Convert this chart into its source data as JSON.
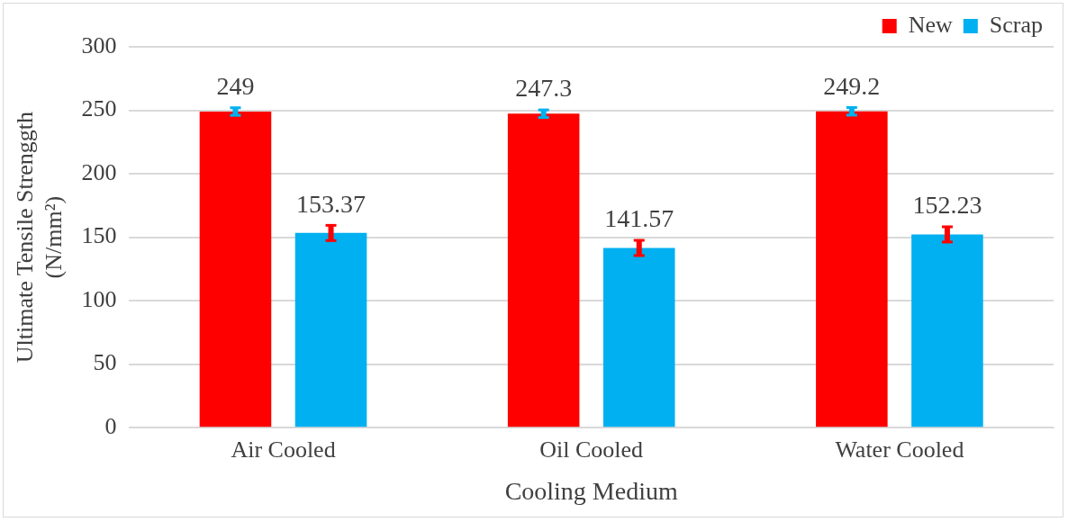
{
  "chart_data": {
    "type": "bar",
    "xlabel": "Cooling Medium",
    "ylabel": "Ultimate Tensile Strenggth (N/mm²)",
    "categories": [
      "Air Cooled",
      "Oil Cooled",
      "Water Cooled"
    ],
    "series": [
      {
        "name": "New",
        "color": "#ff0000",
        "values": [
          249,
          247.3,
          249.2
        ],
        "errors": [
          3,
          3,
          3
        ]
      },
      {
        "name": "Scrap",
        "color": "#00b0f0",
        "values": [
          153.37,
          141.57,
          152.23
        ],
        "errors": [
          6,
          6,
          6
        ]
      }
    ],
    "ylim": [
      0,
      300
    ],
    "yticks": [
      0,
      50,
      100,
      150,
      200,
      250,
      300
    ],
    "grid": "y",
    "legend": "top right",
    "data_labels": true
  }
}
